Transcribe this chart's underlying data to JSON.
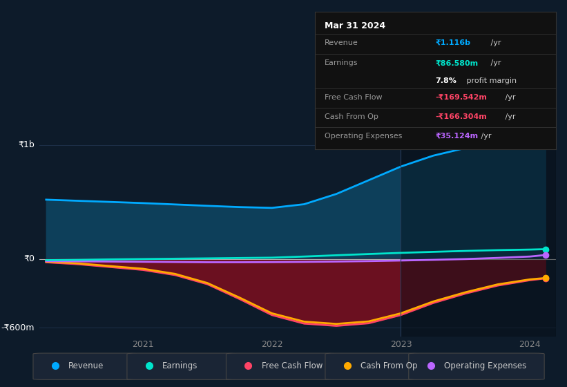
{
  "bg_color": "#0d1b2a",
  "plot_bg_color": "#0d1b2a",
  "y1b_label": "₹1b",
  "y0_label": "₹0",
  "yneg_label": "-₹600m",
  "ylim": [
    -680000000,
    1150000000
  ],
  "yticks": [
    -600000000,
    0,
    1000000000
  ],
  "legend": [
    {
      "label": "Revenue",
      "color": "#00aaff"
    },
    {
      "label": "Earnings",
      "color": "#00e5cc"
    },
    {
      "label": "Free Cash Flow",
      "color": "#ff4466"
    },
    {
      "label": "Cash From Op",
      "color": "#ffaa00"
    },
    {
      "label": "Operating Expenses",
      "color": "#bb66ff"
    }
  ],
  "revenue_color": "#00aaff",
  "revenue_fill": "#0d3f5a",
  "earnings_color": "#00e5cc",
  "fcf_color": "#ff4466",
  "cashfromop_color": "#ffaa00",
  "opex_color": "#bb66ff",
  "fcf_fill": "#6b1020",
  "grid_color": "#1e3048",
  "tooltip": {
    "title": "Mar 31 2024",
    "revenue_label": "Revenue",
    "revenue_val": "₹1.116b",
    "revenue_unit": " /yr",
    "earnings_label": "Earnings",
    "earnings_val": "₹86.580m",
    "earnings_unit": " /yr",
    "profit_margin": "7.8%",
    "profit_margin_text": " profit margin",
    "fcf_label": "Free Cash Flow",
    "fcf_val": "-₹169.542m",
    "fcf_unit": " /yr",
    "cop_label": "Cash From Op",
    "cop_val": "-₹166.304m",
    "cop_unit": " /yr",
    "opex_label": "Operating Expenses",
    "opex_val": "₹35.124m",
    "opex_unit": " /yr"
  },
  "revenue_x": [
    2020.25,
    2020.5,
    2020.75,
    2021.0,
    2021.25,
    2021.5,
    2021.75,
    2022.0,
    2022.25,
    2022.5,
    2022.75,
    2023.0,
    2023.25,
    2023.5,
    2023.75,
    2024.0,
    2024.12
  ],
  "revenue_y": [
    520000000,
    510000000,
    500000000,
    490000000,
    478000000,
    466000000,
    455000000,
    448000000,
    480000000,
    570000000,
    690000000,
    810000000,
    905000000,
    972000000,
    1032000000,
    1075000000,
    1116000000
  ],
  "earnings_x": [
    2020.25,
    2020.5,
    2020.75,
    2021.0,
    2021.25,
    2021.5,
    2021.75,
    2022.0,
    2022.25,
    2022.5,
    2022.75,
    2023.0,
    2023.25,
    2023.5,
    2023.75,
    2024.0,
    2024.12
  ],
  "earnings_y": [
    -10000000,
    -7000000,
    -3000000,
    0,
    3000000,
    6000000,
    9000000,
    12000000,
    22000000,
    33000000,
    44000000,
    54000000,
    63000000,
    71000000,
    78000000,
    83000000,
    86580000
  ],
  "fcf_x": [
    2020.25,
    2020.5,
    2020.75,
    2021.0,
    2021.25,
    2021.5,
    2021.75,
    2022.0,
    2022.25,
    2022.5,
    2022.75,
    2023.0,
    2023.25,
    2023.5,
    2023.75,
    2024.0,
    2024.12
  ],
  "fcf_y": [
    -28000000,
    -45000000,
    -70000000,
    -95000000,
    -140000000,
    -220000000,
    -350000000,
    -490000000,
    -565000000,
    -585000000,
    -562000000,
    -490000000,
    -385000000,
    -302000000,
    -232000000,
    -185000000,
    -169542000
  ],
  "cashfromop_x": [
    2020.25,
    2020.5,
    2020.75,
    2021.0,
    2021.25,
    2021.5,
    2021.75,
    2022.0,
    2022.25,
    2022.5,
    2022.75,
    2023.0,
    2023.25,
    2023.5,
    2023.75,
    2024.0,
    2024.12
  ],
  "cashfromop_y": [
    -22000000,
    -38000000,
    -62000000,
    -85000000,
    -130000000,
    -210000000,
    -338000000,
    -475000000,
    -548000000,
    -568000000,
    -546000000,
    -475000000,
    -372000000,
    -291000000,
    -222000000,
    -178000000,
    -166304000
  ],
  "opex_x": [
    2020.25,
    2020.5,
    2020.75,
    2021.0,
    2021.25,
    2021.5,
    2021.75,
    2022.0,
    2022.25,
    2022.5,
    2022.75,
    2023.0,
    2023.25,
    2023.5,
    2023.75,
    2024.0,
    2024.12
  ],
  "opex_y": [
    -18000000,
    -20000000,
    -22000000,
    -24000000,
    -26000000,
    -28000000,
    -28000000,
    -27000000,
    -25000000,
    -22000000,
    -18000000,
    -13000000,
    -7000000,
    0,
    10000000,
    22000000,
    35124000
  ],
  "shade_x_start": 2023.0,
  "xlim": [
    2020.2,
    2024.2
  ]
}
